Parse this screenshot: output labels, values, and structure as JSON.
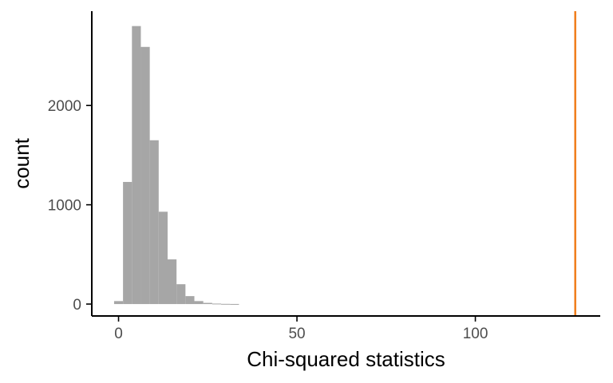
{
  "chart_data": {
    "type": "bar",
    "subtype": "histogram",
    "xlabel": "Chi-squared statistics",
    "ylabel": "count",
    "xlim": [
      -7.5,
      135
    ],
    "ylim": [
      -120,
      2950
    ],
    "x_ticks": [
      0,
      50,
      100
    ],
    "y_ticks": [
      0,
      1000,
      2000
    ],
    "bin_width": 2.5,
    "bins": [
      {
        "start": -1.25,
        "end": 1.25,
        "count": 30
      },
      {
        "start": 1.25,
        "end": 3.75,
        "count": 1230
      },
      {
        "start": 3.75,
        "end": 6.25,
        "count": 2800
      },
      {
        "start": 6.25,
        "end": 8.75,
        "count": 2590
      },
      {
        "start": 8.75,
        "end": 11.25,
        "count": 1650
      },
      {
        "start": 11.25,
        "end": 13.75,
        "count": 930
      },
      {
        "start": 13.75,
        "end": 16.25,
        "count": 450
      },
      {
        "start": 16.25,
        "end": 18.75,
        "count": 200
      },
      {
        "start": 18.75,
        "end": 21.25,
        "count": 80
      },
      {
        "start": 21.25,
        "end": 23.75,
        "count": 30
      },
      {
        "start": 23.75,
        "end": 26.25,
        "count": 12
      },
      {
        "start": 26.25,
        "end": 28.75,
        "count": 5
      },
      {
        "start": 28.75,
        "end": 31.25,
        "count": 2
      },
      {
        "start": 31.25,
        "end": 33.75,
        "count": 1
      }
    ],
    "reference_line": {
      "x": 128,
      "color": "#f07d1a"
    },
    "bar_color": "#a6a6a6",
    "grid": false,
    "legend": "none"
  }
}
